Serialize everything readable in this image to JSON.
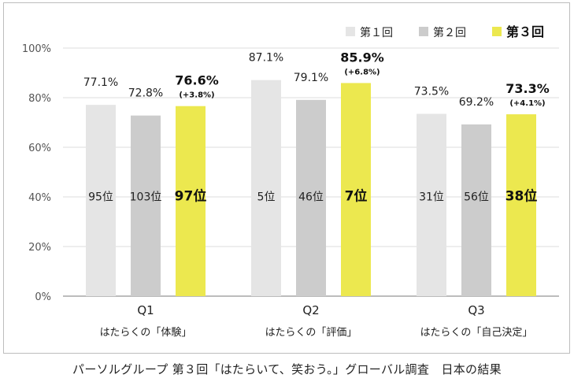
{
  "chart_data": {
    "type": "bar",
    "ylim": [
      0,
      100
    ],
    "yticks": [
      0,
      20,
      40,
      60,
      80,
      100
    ],
    "ytick_suffix": "%",
    "legend_position": "top-right",
    "categories": [
      "Q1",
      "Q2",
      "Q3"
    ],
    "category_sublabels": [
      "はたらくの「体験」",
      "はたらくの「評価」",
      "はたらくの「自己決定」"
    ],
    "series": [
      {
        "name": "第１回",
        "color": "#e5e5e5",
        "values": [
          77.1,
          87.1,
          73.5
        ],
        "value_labels": [
          "77.1%",
          "87.1%",
          "73.5%"
        ],
        "ranks": [
          "95位",
          "5位",
          "31位"
        ]
      },
      {
        "name": "第２回",
        "color": "#cccccc",
        "values": [
          72.8,
          79.1,
          69.2
        ],
        "value_labels": [
          "72.8%",
          "79.1%",
          "69.2%"
        ],
        "ranks": [
          "103位",
          "46位",
          "56位"
        ]
      },
      {
        "name": "第３回",
        "color": "#ece84f",
        "highlight": true,
        "values": [
          76.6,
          85.9,
          73.3
        ],
        "value_labels": [
          "76.6%",
          "85.9%",
          "73.3%"
        ],
        "deltas": [
          "(+3.8%)",
          "(+6.8%)",
          "(+4.1%)"
        ],
        "ranks": [
          "97位",
          "7位",
          "38位"
        ]
      }
    ]
  },
  "caption": "パーソルグループ 第３回「はたらいて、笑おう。」グローバル調査　日本の結果"
}
